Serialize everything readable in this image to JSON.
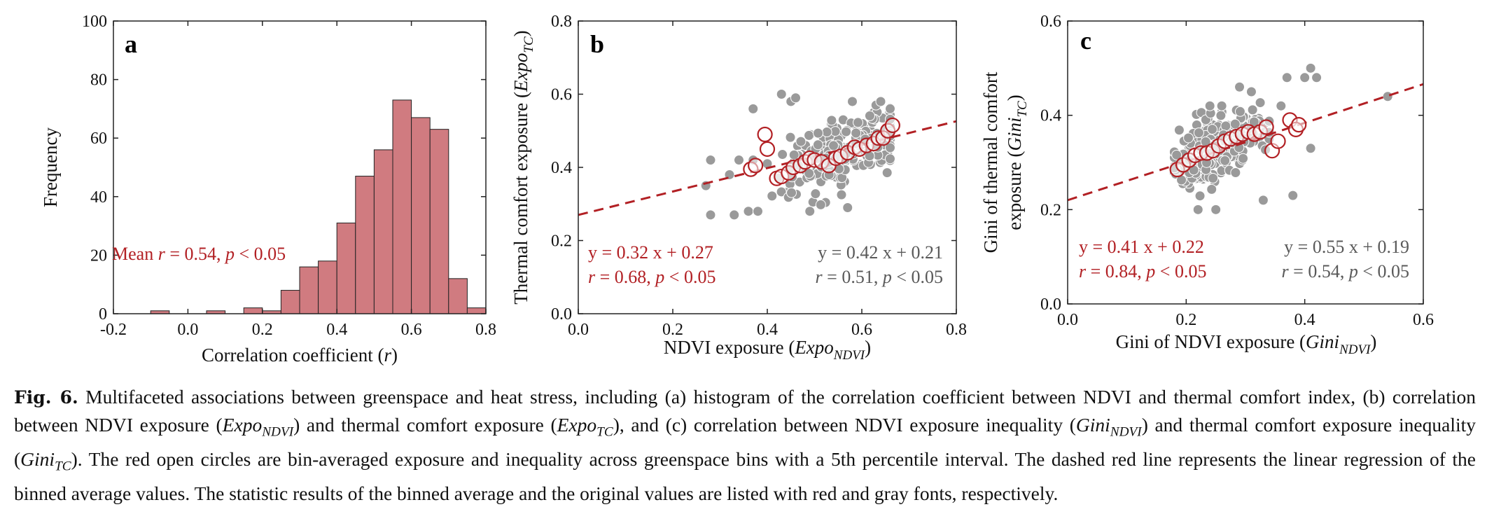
{
  "chart_data": [
    {
      "panel": "a",
      "type": "bar",
      "xlabel": "Correlation coefficient (r)",
      "ylabel": "Frequency",
      "xlim": [
        -0.2,
        0.8
      ],
      "ylim": [
        0,
        100
      ],
      "xticks": [
        "-0.2",
        "0.0",
        "0.2",
        "0.4",
        "0.6",
        "0.8"
      ],
      "yticks": [
        "0",
        "20",
        "40",
        "60",
        "80",
        "100"
      ],
      "bin_width": 0.05,
      "bins": [
        {
          "x0": -0.1,
          "value": 1
        },
        {
          "x0": 0.05,
          "value": 1
        },
        {
          "x0": 0.15,
          "value": 2
        },
        {
          "x0": 0.2,
          "value": 1
        },
        {
          "x0": 0.25,
          "value": 8
        },
        {
          "x0": 0.3,
          "value": 16
        },
        {
          "x0": 0.35,
          "value": 18
        },
        {
          "x0": 0.4,
          "value": 31
        },
        {
          "x0": 0.45,
          "value": 47
        },
        {
          "x0": 0.5,
          "value": 56
        },
        {
          "x0": 0.55,
          "value": 73
        },
        {
          "x0": 0.6,
          "value": 67
        },
        {
          "x0": 0.65,
          "value": 63
        },
        {
          "x0": 0.7,
          "value": 12
        },
        {
          "x0": 0.75,
          "value": 2
        }
      ],
      "bar_color": "#d07b80",
      "annotation": {
        "prefix": "Mean ",
        "r_symbol": "r",
        "middle": " = 0.54, ",
        "p_symbol": "p",
        "suffix": " < 0.05"
      }
    },
    {
      "panel": "b",
      "type": "scatter",
      "xlabel": {
        "main": "NDVI exposure (",
        "italic": "Expo",
        "sub": "NDVI",
        "close": ")"
      },
      "ylabel": {
        "main": "Thermal comfort exposure (",
        "italic": "Expo",
        "sub": "TC",
        "close": ")"
      },
      "xlim": [
        0,
        0.8
      ],
      "ylim": [
        0,
        0.8
      ],
      "xticks": [
        "0.0",
        "0.2",
        "0.4",
        "0.6",
        "0.8"
      ],
      "yticks": [
        "0.0",
        "0.2",
        "0.4",
        "0.6",
        "0.8"
      ],
      "fit": {
        "slope": 0.32,
        "intercept": 0.27
      },
      "binned_points": [
        [
          0.365,
          0.395
        ],
        [
          0.375,
          0.405
        ],
        [
          0.395,
          0.49
        ],
        [
          0.4,
          0.45
        ],
        [
          0.42,
          0.37
        ],
        [
          0.43,
          0.375
        ],
        [
          0.445,
          0.385
        ],
        [
          0.455,
          0.4
        ],
        [
          0.47,
          0.405
        ],
        [
          0.48,
          0.415
        ],
        [
          0.49,
          0.425
        ],
        [
          0.5,
          0.42
        ],
        [
          0.515,
          0.415
        ],
        [
          0.53,
          0.405
        ],
        [
          0.545,
          0.425
        ],
        [
          0.555,
          0.43
        ],
        [
          0.57,
          0.44
        ],
        [
          0.585,
          0.455
        ],
        [
          0.595,
          0.45
        ],
        [
          0.61,
          0.46
        ],
        [
          0.625,
          0.465
        ],
        [
          0.635,
          0.48
        ],
        [
          0.645,
          0.48
        ],
        [
          0.655,
          0.5
        ],
        [
          0.665,
          0.515
        ]
      ],
      "stats_binned": {
        "eq": "y = 0.32 x + 0.27",
        "r_symbol": "r",
        "r_text": " = 0.68, ",
        "p_symbol": "p",
        "p_text": " < 0.05"
      },
      "stats_original": {
        "eq": "y = 0.42 x + 0.21",
        "r_symbol": "r",
        "r_text": " = 0.51, ",
        "p_symbol": "p",
        "p_text": " < 0.05"
      }
    },
    {
      "panel": "c",
      "type": "scatter",
      "xlabel": {
        "main": "Gini of NDVI exposure (",
        "italic": "Gini",
        "sub": "NDVI",
        "close": ")"
      },
      "ylabel": {
        "line1": "Gini of thermal comfort",
        "main": "exposure (",
        "italic": "Gini",
        "sub": "TC",
        "close": ")"
      },
      "xlim": [
        0,
        0.6
      ],
      "ylim": [
        0,
        0.6
      ],
      "xticks": [
        "0.0",
        "0.2",
        "0.4",
        "0.6"
      ],
      "yticks": [
        "0.0",
        "0.2",
        "0.4",
        "0.6"
      ],
      "fit": {
        "slope": 0.41,
        "intercept": 0.22
      },
      "binned_points": [
        [
          0.185,
          0.285
        ],
        [
          0.195,
          0.295
        ],
        [
          0.205,
          0.305
        ],
        [
          0.215,
          0.315
        ],
        [
          0.225,
          0.32
        ],
        [
          0.235,
          0.32
        ],
        [
          0.245,
          0.325
        ],
        [
          0.255,
          0.335
        ],
        [
          0.265,
          0.345
        ],
        [
          0.275,
          0.35
        ],
        [
          0.285,
          0.355
        ],
        [
          0.295,
          0.36
        ],
        [
          0.305,
          0.365
        ],
        [
          0.315,
          0.36
        ],
        [
          0.325,
          0.365
        ],
        [
          0.335,
          0.375
        ],
        [
          0.345,
          0.325
        ],
        [
          0.355,
          0.345
        ],
        [
          0.375,
          0.39
        ],
        [
          0.385,
          0.37
        ],
        [
          0.39,
          0.38
        ]
      ],
      "stats_binned": {
        "eq": "y = 0.41 x + 0.22",
        "r_symbol": "r",
        "r_text": " = 0.84, ",
        "p_symbol": "p",
        "p_text": " < 0.05"
      },
      "stats_original": {
        "eq": "y = 0.55 x + 0.19",
        "r_symbol": "r",
        "r_text": " = 0.54, ",
        "p_symbol": "p",
        "p_text": " < 0.05"
      }
    }
  ],
  "colors": {
    "red": "#b22024",
    "gray_text": "#595959",
    "gray_points": "#9a9a9a",
    "bars": "#d07b80"
  },
  "caption": {
    "label": "Fig. 6.",
    "text": " Multifaceted associations between greenspace and heat stress, including (a) histogram of the correlation coefficient between NDVI and thermal comfort index, (b) correlation between NDVI exposure (Expo_NDVI) and thermal comfort exposure (Expo_TC), and (c) correlation between NDVI exposure inequality (Gini_NDVI) and thermal comfort exposure inequality (Gini_TC). The red open circles are bin-averaged exposure and inequality across greenspace bins with a 5th percentile interval. The dashed red line represents the linear regression of the binned average values. The statistic results of the binned average and the original values are listed with red and gray fonts, respectively."
  }
}
